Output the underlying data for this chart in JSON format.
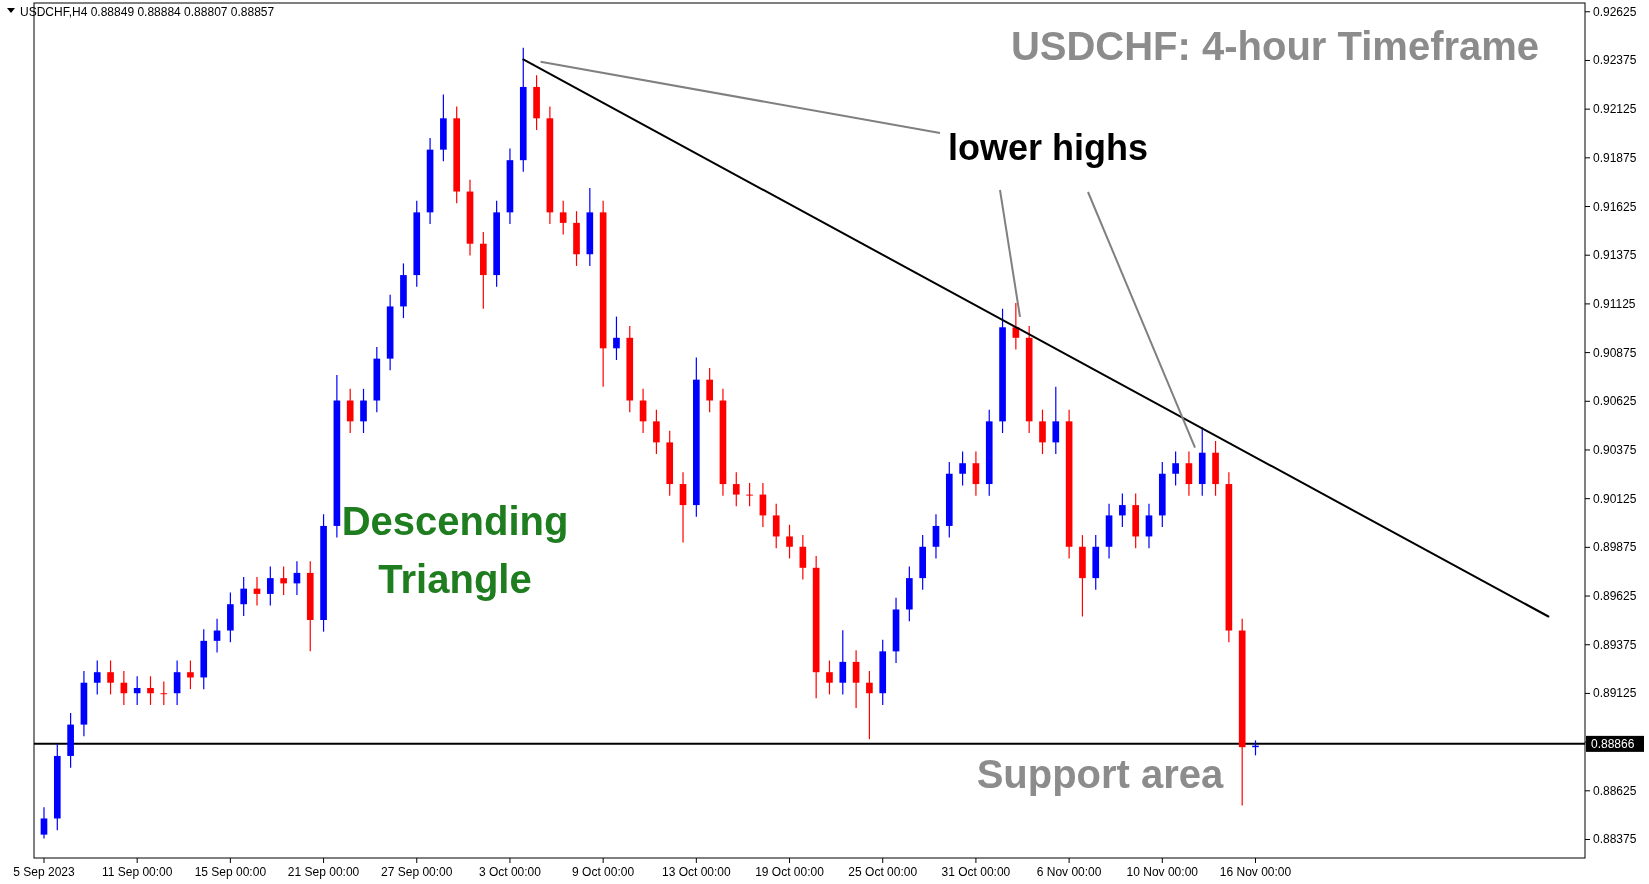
{
  "chart_data": {
    "type": "candlestick",
    "title": "USDCHF: 4-hour Timeframe",
    "subtitle": "USDCHF,H4  0.88849 0.88884 0.88807 0.88857",
    "annotations": [
      "lower highs",
      "Descending Triangle",
      "Support area"
    ],
    "categories": [
      "5 Sep 2023",
      null,
      null,
      null,
      null,
      null,
      null,
      "11 Sep 00:00",
      null,
      null,
      null,
      null,
      null,
      null,
      "15 Sep 00:00",
      null,
      null,
      null,
      null,
      null,
      null,
      "21 Sep 00:00",
      null,
      null,
      null,
      null,
      null,
      null,
      "27 Sep 00:00",
      null,
      null,
      null,
      null,
      null,
      null,
      "3 Oct 00:00",
      null,
      null,
      null,
      null,
      null,
      null,
      "9 Oct 00:00",
      null,
      null,
      null,
      null,
      null,
      null,
      "13 Oct 00:00",
      null,
      null,
      null,
      null,
      null,
      null,
      "19 Oct 00:00",
      null,
      null,
      null,
      null,
      null,
      null,
      "25 Oct 00:00",
      null,
      null,
      null,
      null,
      null,
      null,
      "31 Oct 00:00",
      null,
      null,
      null,
      null,
      null,
      null,
      "6 Nov 00:00",
      null,
      null,
      null,
      null,
      null,
      null,
      "10 Nov 00:00",
      null,
      null,
      null,
      null,
      null,
      null,
      "16 Nov 00:00",
      null,
      null,
      null,
      null,
      null,
      null,
      null,
      null,
      null,
      null,
      null,
      null,
      null,
      null,
      null,
      null,
      null,
      null,
      null,
      null,
      null,
      null,
      null,
      null
    ],
    "ohlc": [
      [
        0.884,
        0.8854,
        0.8838,
        0.88483
      ],
      [
        0.88483,
        0.88864,
        0.88423,
        0.88804
      ],
      [
        0.88804,
        0.89025,
        0.88744,
        0.88965
      ],
      [
        0.88965,
        0.8924,
        0.88905,
        0.8918
      ],
      [
        0.8918,
        0.89294,
        0.8912,
        0.89234
      ],
      [
        0.89234,
        0.89294,
        0.8912,
        0.8918
      ],
      [
        0.8918,
        0.8924,
        0.89066,
        0.89126
      ],
      [
        0.89126,
        0.89213,
        0.89066,
        0.89153
      ],
      [
        0.89153,
        0.89213,
        0.89066,
        0.89126
      ],
      [
        0.89126,
        0.89186,
        0.89066,
        0.89126
      ],
      [
        0.89126,
        0.89294,
        0.89066,
        0.89234
      ],
      [
        0.89234,
        0.89294,
        0.89147,
        0.89207
      ],
      [
        0.89207,
        0.89455,
        0.89147,
        0.89395
      ],
      [
        0.89395,
        0.89508,
        0.89335,
        0.89448
      ],
      [
        0.89448,
        0.89643,
        0.89388,
        0.89583
      ],
      [
        0.89583,
        0.89723,
        0.89523,
        0.89663
      ],
      [
        0.89663,
        0.89723,
        0.89576,
        0.89636
      ],
      [
        0.89636,
        0.89777,
        0.89576,
        0.89717
      ],
      [
        0.89717,
        0.89777,
        0.8963,
        0.8969
      ],
      [
        0.8969,
        0.89804,
        0.8963,
        0.89744
      ],
      [
        0.89744,
        0.89804,
        0.89342,
        0.89502
      ],
      [
        0.89502,
        0.90045,
        0.89442,
        0.89985
      ],
      [
        0.89985,
        0.9076,
        0.89925,
        0.90629
      ],
      [
        0.90629,
        0.90689,
        0.90462,
        0.90522
      ],
      [
        0.90522,
        0.90689,
        0.90462,
        0.90629
      ],
      [
        0.90629,
        0.90904,
        0.90569,
        0.90844
      ],
      [
        0.90844,
        0.91172,
        0.90784,
        0.91112
      ],
      [
        0.91112,
        0.91333,
        0.91052,
        0.91273
      ],
      [
        0.91273,
        0.91655,
        0.91213,
        0.91595
      ],
      [
        0.91595,
        0.91977,
        0.91535,
        0.91917
      ],
      [
        0.91917,
        0.922,
        0.91857,
        0.92078
      ],
      [
        0.92078,
        0.92138,
        0.91642,
        0.91702
      ],
      [
        0.91702,
        0.91762,
        0.91374,
        0.91434
      ],
      [
        0.91434,
        0.91494,
        0.911,
        0.91273
      ],
      [
        0.91273,
        0.91655,
        0.91213,
        0.91595
      ],
      [
        0.91595,
        0.91923,
        0.91535,
        0.91863
      ],
      [
        0.91863,
        0.9244,
        0.91803,
        0.92239
      ],
      [
        0.92239,
        0.92299,
        0.92018,
        0.92078
      ],
      [
        0.92078,
        0.92138,
        0.91535,
        0.91595
      ],
      [
        0.91595,
        0.91655,
        0.91481,
        0.91541
      ],
      [
        0.91541,
        0.91601,
        0.9132,
        0.9138
      ],
      [
        0.9138,
        0.9172,
        0.9132,
        0.91595
      ],
      [
        0.91595,
        0.91655,
        0.907,
        0.90897
      ],
      [
        0.90897,
        0.9106,
        0.90837,
        0.90951
      ],
      [
        0.90951,
        0.91011,
        0.90569,
        0.90629
      ],
      [
        0.90629,
        0.90689,
        0.90462,
        0.90522
      ],
      [
        0.90522,
        0.90582,
        0.90354,
        0.90414
      ],
      [
        0.90414,
        0.90474,
        0.9014,
        0.902
      ],
      [
        0.902,
        0.9026,
        0.899,
        0.90092
      ],
      [
        0.90092,
        0.9085,
        0.90032,
        0.90736
      ],
      [
        0.90736,
        0.90796,
        0.90569,
        0.90629
      ],
      [
        0.90629,
        0.90689,
        0.9014,
        0.902
      ],
      [
        0.902,
        0.9026,
        0.90086,
        0.90146
      ],
      [
        0.90146,
        0.90206,
        0.90086,
        0.90146
      ],
      [
        0.90146,
        0.90206,
        0.89979,
        0.90039
      ],
      [
        0.90039,
        0.90099,
        0.89871,
        0.89931
      ],
      [
        0.89931,
        0.89991,
        0.89818,
        0.89878
      ],
      [
        0.89878,
        0.89938,
        0.8971,
        0.8977
      ],
      [
        0.8977,
        0.8983,
        0.891,
        0.89234
      ],
      [
        0.89234,
        0.89294,
        0.8912,
        0.8918
      ],
      [
        0.8918,
        0.8945,
        0.8912,
        0.89287
      ],
      [
        0.89287,
        0.89347,
        0.8905,
        0.8918
      ],
      [
        0.8918,
        0.8924,
        0.8889,
        0.89126
      ],
      [
        0.89126,
        0.89401,
        0.89066,
        0.89341
      ],
      [
        0.89341,
        0.89616,
        0.89281,
        0.89556
      ],
      [
        0.89556,
        0.89777,
        0.89496,
        0.89717
      ],
      [
        0.89717,
        0.89938,
        0.89657,
        0.89878
      ],
      [
        0.89878,
        0.90045,
        0.89818,
        0.89985
      ],
      [
        0.89985,
        0.90313,
        0.89925,
        0.90253
      ],
      [
        0.90253,
        0.90367,
        0.90193,
        0.90307
      ],
      [
        0.90307,
        0.90367,
        0.9014,
        0.902
      ],
      [
        0.902,
        0.90582,
        0.9014,
        0.90522
      ],
      [
        0.90522,
        0.911,
        0.90462,
        0.91005
      ],
      [
        0.91005,
        0.9113,
        0.90891,
        0.90951
      ],
      [
        0.90951,
        0.91011,
        0.90462,
        0.90522
      ],
      [
        0.90522,
        0.90582,
        0.90354,
        0.90414
      ],
      [
        0.90414,
        0.907,
        0.90354,
        0.90522
      ],
      [
        0.90522,
        0.90582,
        0.89818,
        0.89878
      ],
      [
        0.89878,
        0.89938,
        0.8952,
        0.89717
      ],
      [
        0.89717,
        0.89938,
        0.89657,
        0.89878
      ],
      [
        0.89878,
        0.90099,
        0.89818,
        0.90039
      ],
      [
        0.90039,
        0.90152,
        0.89979,
        0.90092
      ],
      [
        0.90092,
        0.90152,
        0.89871,
        0.89931
      ],
      [
        0.89931,
        0.90099,
        0.89871,
        0.90039
      ],
      [
        0.90039,
        0.90313,
        0.89979,
        0.90253
      ],
      [
        0.90253,
        0.90367,
        0.90193,
        0.90307
      ],
      [
        0.90307,
        0.90367,
        0.9014,
        0.902
      ],
      [
        0.902,
        0.9049,
        0.9014,
        0.90361
      ],
      [
        0.90361,
        0.90421,
        0.9014,
        0.902
      ],
      [
        0.902,
        0.9026,
        0.89388,
        0.89448
      ],
      [
        0.89448,
        0.89508,
        0.8855,
        0.88849
      ],
      [
        0.88849,
        0.88884,
        0.88807,
        0.88857
      ],
      null,
      null,
      null,
      null,
      null,
      null,
      null,
      null,
      null,
      null,
      null,
      null,
      null,
      null,
      null,
      null,
      null,
      null,
      null,
      null,
      null,
      null,
      null,
      null
    ],
    "colors": [
      "#0000ff",
      "#0000ff",
      "#0000ff",
      "#0000ff",
      "#0000ff",
      "#ff0000",
      "#ff0000",
      "#0000ff",
      "#ff0000",
      "#ff0000",
      "#0000ff",
      "#ff0000",
      "#0000ff",
      "#0000ff",
      "#0000ff",
      "#0000ff",
      "#ff0000",
      "#0000ff",
      "#ff0000",
      "#0000ff",
      "#ff0000",
      "#0000ff",
      "#0000ff",
      "#ff0000",
      "#0000ff",
      "#0000ff",
      "#0000ff",
      "#0000ff",
      "#0000ff",
      "#0000ff",
      "#0000ff",
      "#ff0000",
      "#ff0000",
      "#ff0000",
      "#0000ff",
      "#0000ff",
      "#0000ff",
      "#ff0000",
      "#ff0000",
      "#ff0000",
      "#ff0000",
      "#0000ff",
      "#ff0000",
      "#0000ff",
      "#ff0000",
      "#ff0000",
      "#ff0000",
      "#ff0000",
      "#ff0000",
      "#0000ff",
      "#ff0000",
      "#ff0000",
      "#ff0000",
      "#ff0000",
      "#ff0000",
      "#ff0000",
      "#ff0000",
      "#ff0000",
      "#ff0000",
      "#ff0000",
      "#0000ff",
      "#ff0000",
      "#ff0000",
      "#0000ff",
      "#0000ff",
      "#0000ff",
      "#0000ff",
      "#0000ff",
      "#0000ff",
      "#0000ff",
      "#ff0000",
      "#0000ff",
      "#0000ff",
      "#ff0000",
      "#ff0000",
      "#ff0000",
      "#0000ff",
      "#ff0000",
      "#ff0000",
      "#0000ff",
      "#0000ff",
      "#0000ff",
      "#ff0000",
      "#0000ff",
      "#0000ff",
      "#0000ff",
      "#ff0000",
      "#0000ff",
      "#ff0000",
      "#ff0000",
      "#ff0000",
      "#0000ff",
      null,
      null,
      null,
      null,
      null,
      null,
      null,
      null,
      null,
      null,
      null,
      null,
      null,
      null,
      null,
      null,
      null,
      null,
      null,
      null,
      null,
      null,
      null,
      null
    ],
    "series": [
      {
        "type": "line",
        "color": "#000000",
        "values": [
          null,
          null,
          null,
          null,
          null,
          null,
          null,
          null,
          null,
          null,
          null,
          null,
          null,
          null,
          null,
          null,
          null,
          null,
          null,
          null,
          null,
          null,
          null,
          null,
          null,
          null,
          null,
          null,
          null,
          null,
          null,
          null,
          null,
          null,
          null,
          null,
          0.9238,
          null,
          null,
          null,
          null,
          null,
          null,
          null,
          null,
          null,
          null,
          null,
          null,
          null,
          null,
          null,
          null,
          null,
          null,
          null,
          null,
          null,
          null,
          null,
          null,
          null,
          null,
          null,
          null,
          null,
          null,
          null,
          null,
          null,
          null,
          null,
          null,
          null,
          null,
          null,
          null,
          null,
          null,
          null,
          null,
          null,
          null,
          null,
          null,
          null,
          null,
          null,
          null,
          null,
          null,
          null,
          null,
          null,
          null,
          null,
          null,
          null,
          null,
          null,
          null,
          null,
          null,
          null,
          null,
          null,
          null,
          null,
          null,
          null,
          null,
          null,
          null,
          0.8952,
          null,
          null
        ]
      }
    ],
    "ref_lines": [
      {
        "axis": "y",
        "value": 0.88866,
        "label": "0.88866",
        "color": "#000000"
      }
    ],
    "ylim": [
      0.8828,
      0.9267
    ],
    "yticks": [
      0.88375,
      0.88625,
      {
        "value": 0.88875,
        "label": null
      },
      0.89125,
      0.89375,
      0.89625,
      0.89875,
      0.90125,
      0.90375,
      0.90625,
      0.90875,
      0.91125,
      0.91375,
      0.91625,
      0.91875,
      0.92125,
      0.92375,
      0.92625
    ]
  }
}
